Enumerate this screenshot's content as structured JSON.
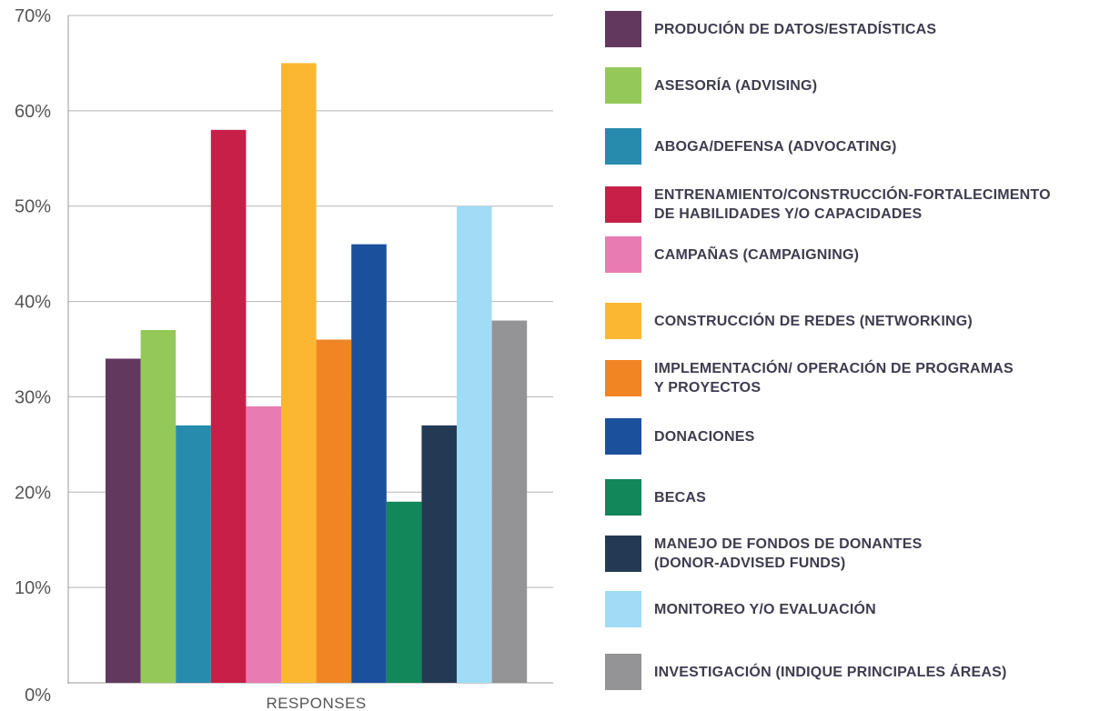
{
  "chart_data": {
    "type": "bar",
    "xlabel": "RESPONSES",
    "ylabel": "",
    "ylim": [
      0,
      70
    ],
    "y_ticks": [
      "0%",
      "10%",
      "20%",
      "30%",
      "40%",
      "50%",
      "60%",
      "70%"
    ],
    "y_tick_values": [
      0,
      10,
      20,
      30,
      40,
      50,
      60,
      70
    ],
    "grid": true,
    "legend_position": "right",
    "series": [
      {
        "name": "PRODUCIÓN DE DATOS/ESTADÍSTICAS",
        "value": 34,
        "color": "#62385f"
      },
      {
        "name": "ASESORÍA (ADVISING)",
        "value": 37,
        "color": "#94c95a"
      },
      {
        "name": "ABOGA/DEFENSA (ADVOCATING)",
        "value": 27,
        "color": "#278bae"
      },
      {
        "name": "ENTRENAMIENTO/CONSTRUCCIÓN-FORTALECIMENTO\nDE HABILIDADES Y/O CAPACIDADES",
        "value": 58,
        "color": "#c81f48"
      },
      {
        "name": "CAMPAÑAS (CAMPAIGNING)",
        "value": 29,
        "color": "#e87bb2"
      },
      {
        "name": "CONSTRUCCIÓN DE REDES (NETWORKING)",
        "value": 65,
        "color": "#fbb731"
      },
      {
        "name": "IMPLEMENTACIÓN/ OPERACIÓN DE PROGRAMAS\nY PROYECTOS",
        "value": 36,
        "color": "#f18523"
      },
      {
        "name": "DONACIONES",
        "value": 46,
        "color": "#1b519c"
      },
      {
        "name": "BECAS",
        "value": 19,
        "color": "#128759"
      },
      {
        "name": "MANEJO DE FONDOS DE DONANTES\n(DONOR-ADVISED FUNDS)",
        "value": 27,
        "color": "#243a54"
      },
      {
        "name": "MONITOREO Y/O EVALUACIÓN",
        "value": 50,
        "color": "#a0dcf5"
      },
      {
        "name": "INVESTIGACIÓN (INDIQUE PRINCIPALES ÁREAS)",
        "value": 38,
        "color": "#949497"
      }
    ]
  }
}
